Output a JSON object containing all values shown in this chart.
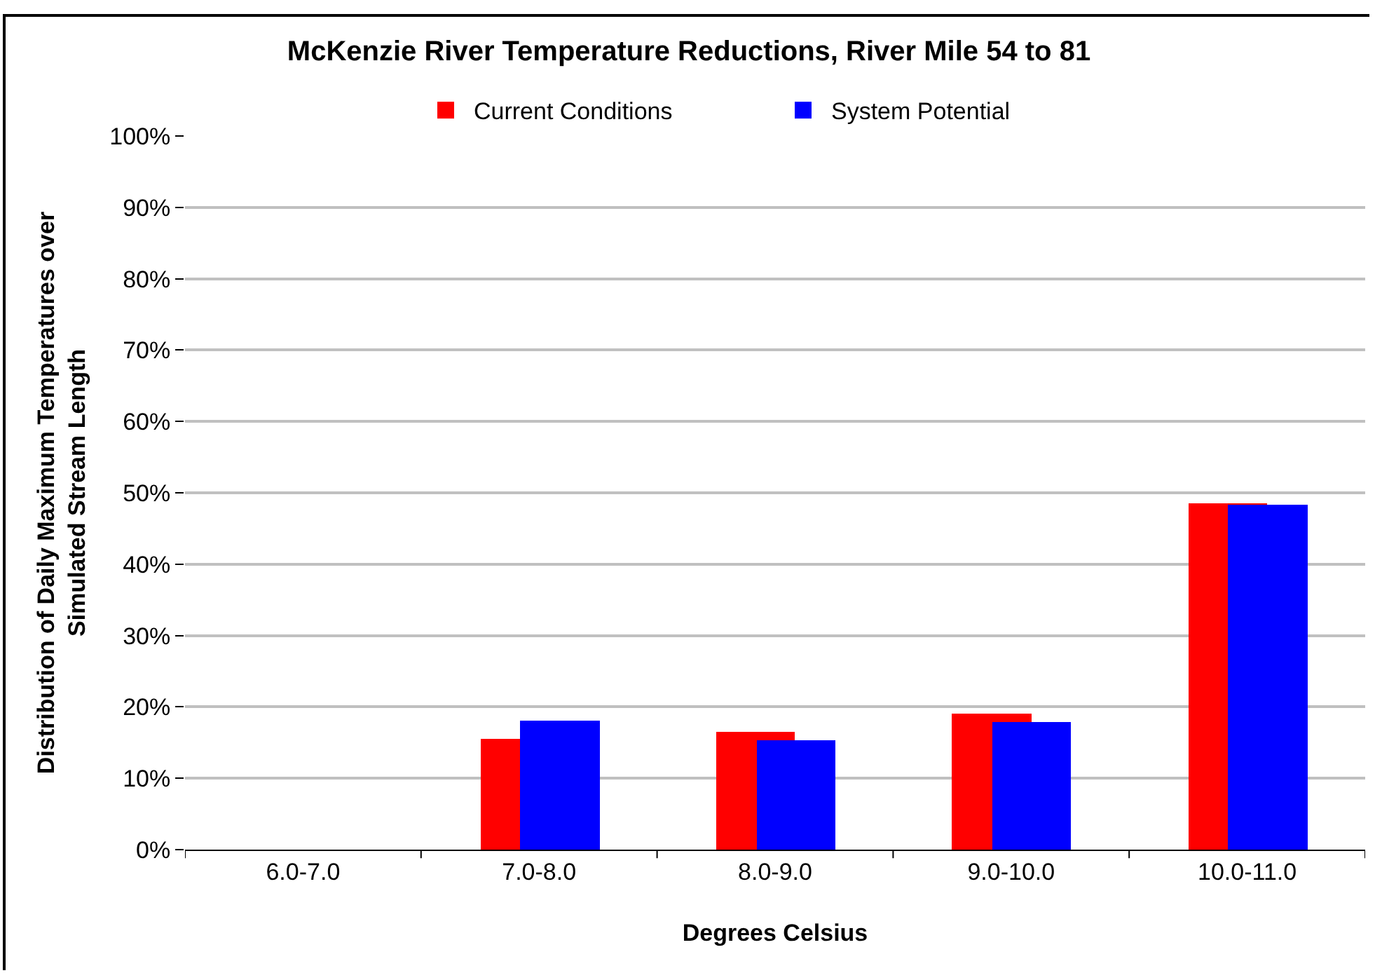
{
  "chart_data": {
    "type": "bar",
    "title": "McKenzie River Temperature Reductions, River Mile 54 to 81",
    "xlabel": "Degrees Celsius",
    "ylabel": "Distribution of Daily Maximum Temperatures over Simulated Stream Length",
    "categories": [
      "6.0-7.0",
      "7.0-8.0",
      "8.0-9.0",
      "9.0-10.0",
      "10.0-11.0"
    ],
    "series": [
      {
        "name": "Current Conditions",
        "color": "#ff0000",
        "values": [
          0,
          15.6,
          16.6,
          19.0,
          48.5
        ]
      },
      {
        "name": "System Potential",
        "color": "#0000ff",
        "values": [
          0,
          18.0,
          15.4,
          17.8,
          48.3
        ]
      }
    ],
    "ylim": [
      0,
      100
    ],
    "yticks": [
      {
        "value": 0,
        "label": "0%"
      },
      {
        "value": 10,
        "label": "10%"
      },
      {
        "value": 20,
        "label": "20%"
      },
      {
        "value": 30,
        "label": "30%"
      },
      {
        "value": 40,
        "label": "40%"
      },
      {
        "value": 50,
        "label": "50%"
      },
      {
        "value": 60,
        "label": "60%"
      },
      {
        "value": 70,
        "label": "70%"
      },
      {
        "value": 80,
        "label": "80%"
      },
      {
        "value": 90,
        "label": "90%"
      },
      {
        "value": 100,
        "label": "100%"
      }
    ],
    "grid": "y",
    "legend": "top"
  }
}
